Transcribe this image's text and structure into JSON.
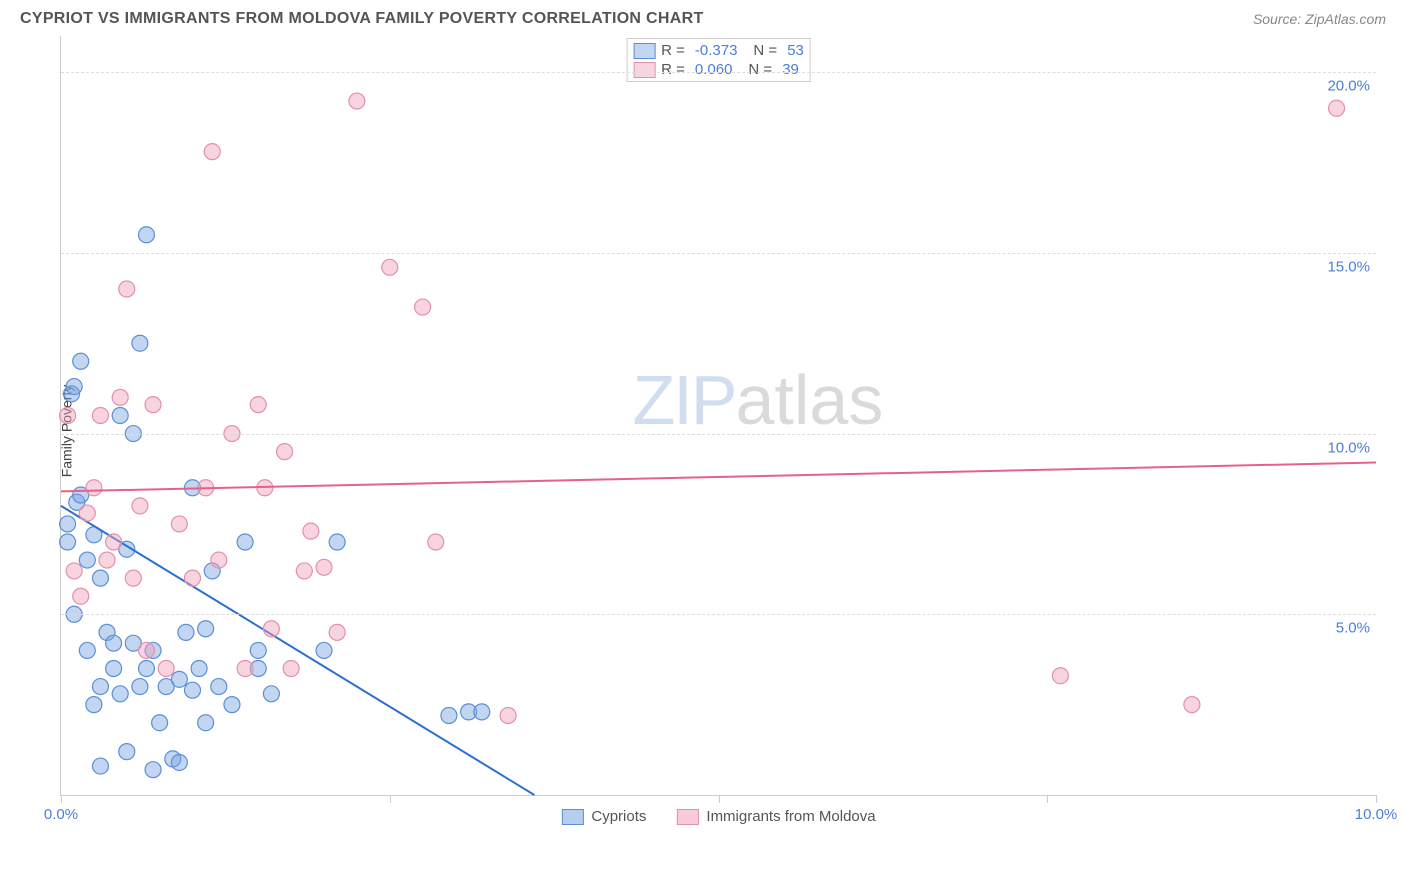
{
  "header": {
    "title": "CYPRIOT VS IMMIGRANTS FROM MOLDOVA FAMILY POVERTY CORRELATION CHART",
    "source": "Source: ZipAtlas.com"
  },
  "chart": {
    "type": "scatter",
    "ylabel": "Family Poverty",
    "watermark_a": "ZIP",
    "watermark_b": "atlas",
    "xlim": [
      0,
      10
    ],
    "ylim": [
      0,
      21
    ],
    "xtick_positions": [
      0,
      2.5,
      5,
      7.5,
      10
    ],
    "xtick_labels": [
      "0.0%",
      "",
      "",
      "",
      "10.0%"
    ],
    "ytick_positions": [
      5,
      10,
      15,
      20
    ],
    "ytick_labels": [
      "5.0%",
      "10.0%",
      "15.0%",
      "20.0%"
    ],
    "grid_color": "#dddddd",
    "axis_color": "#cccccc",
    "tick_label_color": "#4a7fd8",
    "marker_radius": 8,
    "marker_stroke_width": 1.2,
    "trend_line_width": 2,
    "series": [
      {
        "name": "Cypriots",
        "fill_color": "rgba(120,165,225,0.45)",
        "stroke_color": "#5b8fd6",
        "line_color": "#2d6fd0",
        "R": "-0.373",
        "N": "53",
        "trend": {
          "x1": 0,
          "y1": 8.0,
          "x2": 3.6,
          "y2": 0
        },
        "points": [
          [
            0.05,
            7.0
          ],
          [
            0.05,
            7.5
          ],
          [
            0.08,
            11.1
          ],
          [
            0.1,
            5.0
          ],
          [
            0.1,
            11.3
          ],
          [
            0.12,
            8.1
          ],
          [
            0.15,
            12.0
          ],
          [
            0.2,
            4.0
          ],
          [
            0.25,
            2.5
          ],
          [
            0.3,
            6.0
          ],
          [
            0.35,
            4.5
          ],
          [
            0.4,
            3.5
          ],
          [
            0.4,
            4.2
          ],
          [
            0.45,
            2.8
          ],
          [
            0.5,
            1.2
          ],
          [
            0.5,
            6.8
          ],
          [
            0.55,
            10.0
          ],
          [
            0.6,
            12.5
          ],
          [
            0.6,
            3.0
          ],
          [
            0.65,
            15.5
          ],
          [
            0.7,
            4.0
          ],
          [
            0.75,
            2.0
          ],
          [
            0.8,
            3.0
          ],
          [
            0.85,
            1.0
          ],
          [
            0.9,
            3.2
          ],
          [
            0.9,
            0.9
          ],
          [
            0.95,
            4.5
          ],
          [
            1.0,
            2.9
          ],
          [
            1.0,
            8.5
          ],
          [
            1.05,
            3.5
          ],
          [
            1.1,
            4.6
          ],
          [
            1.1,
            2.0
          ],
          [
            1.15,
            6.2
          ],
          [
            1.2,
            3.0
          ],
          [
            1.3,
            2.5
          ],
          [
            1.4,
            7.0
          ],
          [
            1.5,
            3.5
          ],
          [
            1.5,
            4.0
          ],
          [
            1.6,
            2.8
          ],
          [
            2.0,
            4.0
          ],
          [
            2.1,
            7.0
          ],
          [
            2.95,
            2.2
          ],
          [
            3.1,
            2.3
          ],
          [
            3.2,
            2.3
          ],
          [
            0.3,
            0.8
          ],
          [
            0.7,
            0.7
          ],
          [
            0.2,
            6.5
          ],
          [
            0.55,
            4.2
          ],
          [
            0.25,
            7.2
          ],
          [
            0.15,
            8.3
          ],
          [
            0.45,
            10.5
          ],
          [
            0.3,
            3.0
          ],
          [
            0.65,
            3.5
          ]
        ]
      },
      {
        "name": "Immigrants from Moldova",
        "fill_color": "rgba(240,160,185,0.45)",
        "stroke_color": "#e48fad",
        "line_color": "#e85f8a",
        "R": "0.060",
        "N": "39",
        "trend": {
          "x1": 0,
          "y1": 8.4,
          "x2": 10,
          "y2": 9.2
        },
        "points": [
          [
            0.05,
            10.5
          ],
          [
            0.1,
            6.2
          ],
          [
            0.2,
            7.8
          ],
          [
            0.3,
            10.5
          ],
          [
            0.35,
            6.5
          ],
          [
            0.4,
            7.0
          ],
          [
            0.5,
            14.0
          ],
          [
            0.6,
            8.0
          ],
          [
            0.7,
            10.8
          ],
          [
            0.8,
            3.5
          ],
          [
            0.9,
            7.5
          ],
          [
            1.0,
            6.0
          ],
          [
            1.1,
            8.5
          ],
          [
            1.15,
            17.8
          ],
          [
            1.2,
            6.5
          ],
          [
            1.3,
            10.0
          ],
          [
            1.4,
            3.5
          ],
          [
            1.5,
            10.8
          ],
          [
            1.6,
            4.6
          ],
          [
            1.7,
            9.5
          ],
          [
            1.75,
            3.5
          ],
          [
            1.85,
            6.2
          ],
          [
            1.9,
            7.3
          ],
          [
            2.0,
            6.3
          ],
          [
            2.1,
            4.5
          ],
          [
            2.25,
            19.2
          ],
          [
            2.5,
            14.6
          ],
          [
            2.75,
            13.5
          ],
          [
            2.85,
            7.0
          ],
          [
            3.4,
            2.2
          ],
          [
            7.6,
            3.3
          ],
          [
            8.6,
            2.5
          ],
          [
            9.7,
            19.0
          ],
          [
            0.25,
            8.5
          ],
          [
            0.45,
            11.0
          ],
          [
            0.55,
            6.0
          ],
          [
            0.15,
            5.5
          ],
          [
            0.65,
            4.0
          ],
          [
            1.55,
            8.5
          ]
        ]
      }
    ],
    "bottom_legend": [
      {
        "label": "Cypriots",
        "fill": "rgba(120,165,225,0.55)",
        "stroke": "#5b8fd6"
      },
      {
        "label": "Immigrants from Moldova",
        "fill": "rgba(240,160,185,0.55)",
        "stroke": "#e48fad"
      }
    ]
  }
}
